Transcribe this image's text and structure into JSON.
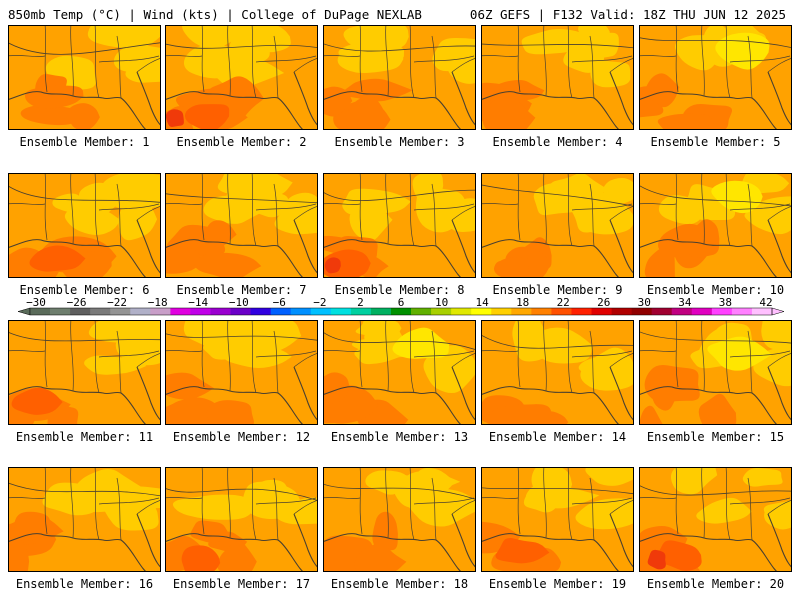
{
  "header": {
    "left_title": "850mb Temp (°C) | Wind (kts) | College of DuPage NEXLAB",
    "right_title": "06Z GEFS | F132 Valid: 18Z THU JUN 12 2025"
  },
  "caption_prefix": "Ensemble Member:",
  "members": [
    {
      "label": "Ensemble Member: 1"
    },
    {
      "label": "Ensemble Member: 2"
    },
    {
      "label": "Ensemble Member: 3"
    },
    {
      "label": "Ensemble Member: 4"
    },
    {
      "label": "Ensemble Member: 5"
    },
    {
      "label": "Ensemble Member: 6"
    },
    {
      "label": "Ensemble Member: 7"
    },
    {
      "label": "Ensemble Member: 8"
    },
    {
      "label": "Ensemble Member: 9"
    },
    {
      "label": "Ensemble Member: 10"
    },
    {
      "label": "Ensemble Member: 11"
    },
    {
      "label": "Ensemble Member: 12"
    },
    {
      "label": "Ensemble Member: 13"
    },
    {
      "label": "Ensemble Member: 14"
    },
    {
      "label": "Ensemble Member: 15"
    },
    {
      "label": "Ensemble Member: 16"
    },
    {
      "label": "Ensemble Member: 17"
    },
    {
      "label": "Ensemble Member: 18"
    },
    {
      "label": "Ensemble Member: 19"
    },
    {
      "label": "Ensemble Member: 20"
    }
  ],
  "colorbar": {
    "tick_labels": [
      "−30",
      "−26",
      "−22",
      "−18",
      "−14",
      "−10",
      "−6",
      "−2",
      "2",
      "6",
      "10",
      "14",
      "18",
      "22",
      "26",
      "30",
      "34",
      "38",
      "42"
    ],
    "colors": [
      "#5a6b5a",
      "#6e7e6e",
      "#5f5f5f",
      "#7a7a7a",
      "#949494",
      "#b0b0c8",
      "#c89ec8",
      "#e000e0",
      "#c000e8",
      "#9a00d0",
      "#6a00c8",
      "#3000e0",
      "#0060ff",
      "#0090ff",
      "#00c0ff",
      "#00e0e0",
      "#00d0a0",
      "#00b060",
      "#009000",
      "#60b000",
      "#a8d000",
      "#e0e800",
      "#ffff00",
      "#ffd000",
      "#ffa800",
      "#ff8000",
      "#ff5000",
      "#ff2000",
      "#e00000",
      "#b00000",
      "#900000",
      "#a00030",
      "#c00080",
      "#e000c0",
      "#ff40ff",
      "#ff80ff",
      "#ffc0ff"
    ]
  },
  "map_colors": {
    "base": "#ffa200",
    "light": "#ffcc00",
    "yellow": "#ffe600",
    "dark": "#ff7d00",
    "darker": "#ff6000",
    "red": "#f03a0a",
    "line": "#4a4030"
  }
}
